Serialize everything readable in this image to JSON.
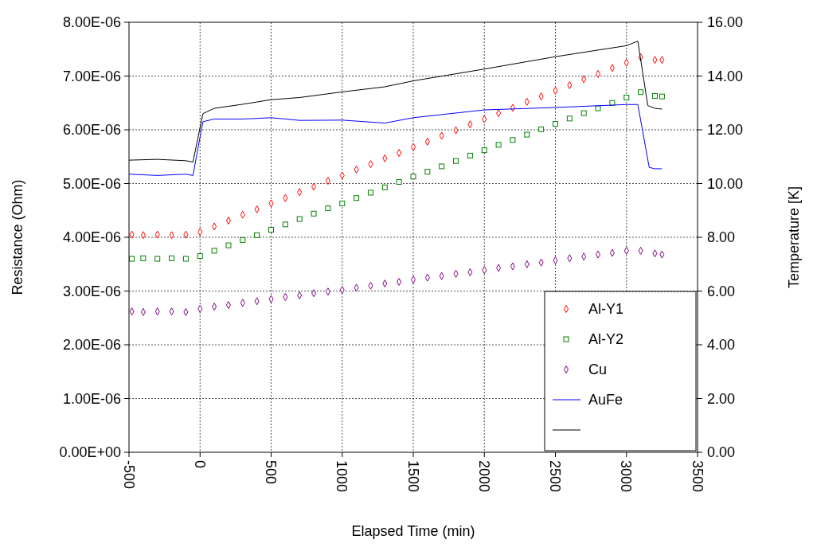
{
  "chart_data": {
    "type": "scatter",
    "xlabel": "Elapsed Time (min)",
    "ylabel": "Resistance (Ohm)",
    "y2label": "Temperature [K]",
    "xlim": [
      -500,
      3500
    ],
    "xticks": [
      -500,
      0,
      500,
      1000,
      1500,
      2000,
      2500,
      3000,
      3500
    ],
    "ylim": [
      0,
      8e-06
    ],
    "yticks": [
      {
        "value": 0,
        "label": "0.00E+00"
      },
      {
        "value": 1e-06,
        "label": "1.00E-06"
      },
      {
        "value": 2e-06,
        "label": "2.00E-06"
      },
      {
        "value": 3e-06,
        "label": "3.00E-06"
      },
      {
        "value": 4e-06,
        "label": "4.00E-06"
      },
      {
        "value": 5e-06,
        "label": "5.00E-06"
      },
      {
        "value": 6e-06,
        "label": "6.00E-06"
      },
      {
        "value": 7e-06,
        "label": "7.00E-06"
      },
      {
        "value": 8e-06,
        "label": "8.00E-06"
      }
    ],
    "y2lim": [
      0,
      16
    ],
    "y2ticks": [
      {
        "value": 0,
        "label": "0.00"
      },
      {
        "value": 2,
        "label": "2.00"
      },
      {
        "value": 4,
        "label": "4.00"
      },
      {
        "value": 6,
        "label": "6.00"
      },
      {
        "value": 8,
        "label": "8.00"
      },
      {
        "value": 10,
        "label": "10.00"
      },
      {
        "value": 12,
        "label": "12.00"
      },
      {
        "value": 14,
        "label": "14.00"
      },
      {
        "value": 16,
        "label": "16.00"
      }
    ],
    "grid": true,
    "legend": "bottom right",
    "x": [
      -480,
      -400,
      -300,
      -200,
      -100,
      0,
      100,
      200,
      300,
      400,
      500,
      600,
      700,
      800,
      900,
      1000,
      1100,
      1200,
      1300,
      1400,
      1500,
      1600,
      1700,
      1800,
      1900,
      2000,
      2100,
      2200,
      2300,
      2400,
      2500,
      2600,
      2700,
      2800,
      2900,
      3000,
      3100,
      3200,
      3250
    ],
    "series": [
      {
        "name": "Al-Y1",
        "marker": "diamond",
        "color": "#ff0000",
        "values": [
          4.05e-06,
          4.04e-06,
          4.05e-06,
          4.04e-06,
          4.05e-06,
          4.1e-06,
          4.2e-06,
          4.31e-06,
          4.42e-06,
          4.52e-06,
          4.63e-06,
          4.73e-06,
          4.84e-06,
          4.94e-06,
          5.05e-06,
          5.15e-06,
          5.26e-06,
          5.36e-06,
          5.47e-06,
          5.57e-06,
          5.68e-06,
          5.78e-06,
          5.89e-06,
          5.99e-06,
          6.1e-06,
          6.2e-06,
          6.31e-06,
          6.41e-06,
          6.52e-06,
          6.62e-06,
          6.73e-06,
          6.83e-06,
          6.94e-06,
          7.04e-06,
          7.15e-06,
          7.25e-06,
          7.35e-06,
          7.3e-06,
          7.3e-06
        ]
      },
      {
        "name": "Al-Y2",
        "marker": "square",
        "color": "#008000",
        "values": [
          3.6e-06,
          3.61e-06,
          3.6e-06,
          3.61e-06,
          3.6e-06,
          3.65e-06,
          3.75e-06,
          3.85e-06,
          3.95e-06,
          4.04e-06,
          4.14e-06,
          4.24e-06,
          4.34e-06,
          4.44e-06,
          4.54e-06,
          4.63e-06,
          4.73e-06,
          4.83e-06,
          4.93e-06,
          5.03e-06,
          5.13e-06,
          5.22e-06,
          5.32e-06,
          5.42e-06,
          5.52e-06,
          5.62e-06,
          5.72e-06,
          5.81e-06,
          5.91e-06,
          6.01e-06,
          6.11e-06,
          6.21e-06,
          6.31e-06,
          6.4e-06,
          6.5e-06,
          6.6e-06,
          6.7e-06,
          6.63e-06,
          6.62e-06
        ]
      },
      {
        "name": "Cu",
        "marker": "diamond",
        "color": "#800080",
        "values": [
          2.62e-06,
          2.61e-06,
          2.62e-06,
          2.62e-06,
          2.61e-06,
          2.67e-06,
          2.71e-06,
          2.74e-06,
          2.78e-06,
          2.81e-06,
          2.85e-06,
          2.89e-06,
          2.92e-06,
          2.96e-06,
          2.99e-06,
          3.02e-06,
          3.06e-06,
          3.1e-06,
          3.14e-06,
          3.17e-06,
          3.21e-06,
          3.25e-06,
          3.28e-06,
          3.32e-06,
          3.35e-06,
          3.39e-06,
          3.43e-06,
          3.46e-06,
          3.5e-06,
          3.53e-06,
          3.57e-06,
          3.61e-06,
          3.64e-06,
          3.68e-06,
          3.71e-06,
          3.75e-06,
          3.75e-06,
          3.7e-06,
          3.68e-06
        ]
      },
      {
        "name": "AuFe",
        "type": "line",
        "axis": "y2",
        "marker": "none",
        "color": "#0000ff",
        "x": [
          -500,
          -300,
          -100,
          -50,
          20,
          100,
          300,
          500,
          700,
          1000,
          1300,
          1500,
          2000,
          2500,
          3000,
          3080,
          3160,
          3200,
          3250
        ],
        "values": [
          10.35,
          10.3,
          10.35,
          10.3,
          12.3,
          12.4,
          12.4,
          12.45,
          12.35,
          12.36,
          12.25,
          12.45,
          12.74,
          12.83,
          12.94,
          12.94,
          10.6,
          10.55,
          10.55
        ]
      },
      {
        "type": "line",
        "axis": "y2",
        "marker": "none",
        "color": "#000000",
        "x": [
          -500,
          -300,
          -100,
          -50,
          20,
          100,
          300,
          500,
          700,
          1000,
          1300,
          1500,
          2000,
          2500,
          3000,
          3080,
          3150,
          3200,
          3250
        ],
        "values": [
          10.87,
          10.9,
          10.85,
          10.8,
          12.6,
          12.8,
          12.95,
          13.12,
          13.2,
          13.41,
          13.6,
          13.82,
          14.26,
          14.72,
          15.13,
          15.3,
          12.9,
          12.8,
          12.77
        ]
      }
    ]
  }
}
